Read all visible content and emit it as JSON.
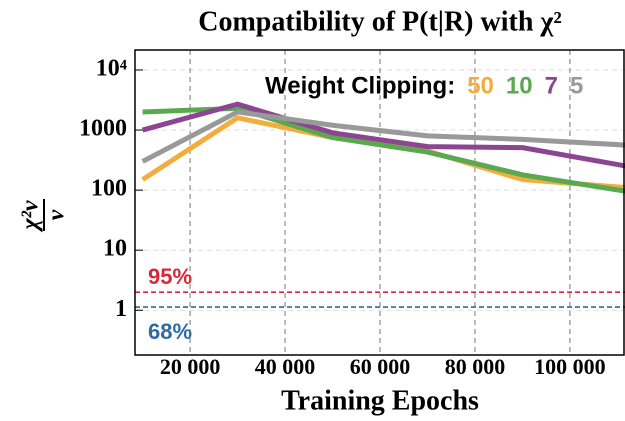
{
  "chart_data": {
    "type": "line",
    "title": "Compatibility of P(t|R) with χ²",
    "xlabel": "Training Epochs",
    "ylabel": {
      "numerator": "χ²ν",
      "denominator": "ν"
    },
    "legend_title": "Weight Clipping:",
    "x": [
      10000,
      30000,
      50000,
      70000,
      90000,
      112000
    ],
    "series": [
      {
        "name": "50",
        "color": "#f2ad3d",
        "values": [
          150,
          1600,
          750,
          450,
          150,
          110
        ]
      },
      {
        "name": "10",
        "color": "#5aa850",
        "values": [
          2000,
          2300,
          750,
          430,
          180,
          95
        ]
      },
      {
        "name": "7",
        "color": "#8b4593",
        "values": [
          1000,
          2700,
          900,
          530,
          510,
          250
        ]
      },
      {
        "name": "5",
        "color": "#999999",
        "values": [
          300,
          2000,
          1200,
          800,
          700,
          560
        ]
      }
    ],
    "hlines": [
      {
        "value": 2,
        "label": "95%",
        "color": "#d42a3a"
      },
      {
        "value": 1.13,
        "label": "68%",
        "color": "#2f6aa3"
      }
    ],
    "xlim": [
      8400,
      111600
    ],
    "ylim": [
      0.18,
      21500
    ],
    "log_y": true,
    "xticks": [
      {
        "value": 20000,
        "label": "20 000"
      },
      {
        "value": 40000,
        "label": "40 000"
      },
      {
        "value": 60000,
        "label": "60 000"
      },
      {
        "value": 80000,
        "label": "80 000"
      },
      {
        "value": 100000,
        "label": "100 000"
      }
    ],
    "yticks": [
      1,
      10,
      100,
      1000,
      {
        "value": 10000,
        "label": "10⁴"
      }
    ],
    "grid": true
  }
}
